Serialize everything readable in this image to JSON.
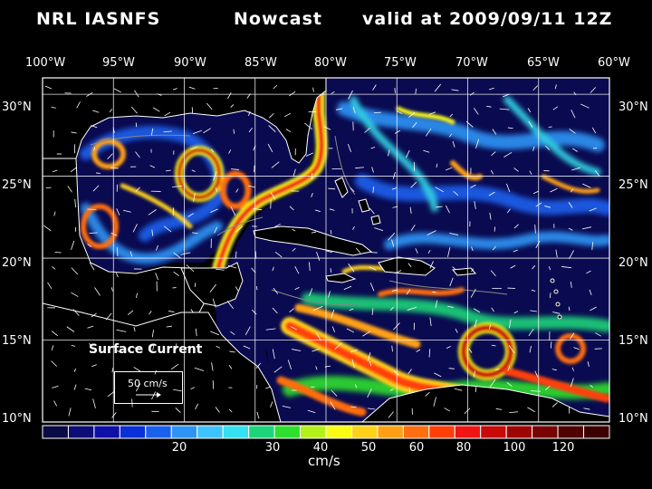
{
  "header": {
    "model": "NRL IASNFS",
    "product": "Nowcast",
    "valid": "valid at 2009/09/11 12Z"
  },
  "map": {
    "lon_labels": [
      "100°W",
      "95°W",
      "90°W",
      "85°W",
      "80°W",
      "75°W",
      "70°W",
      "65°W",
      "60°W"
    ],
    "lat_labels": [
      "30°N",
      "25°N",
      "20°N",
      "15°N",
      "10°N"
    ],
    "lon_range": [
      -100,
      -60
    ],
    "lat_range": [
      10,
      31
    ],
    "field": "surface current speed",
    "grid": true,
    "land_color": "#000000",
    "coast_color": "#ffffff"
  },
  "overlay": {
    "title": "Surface Current",
    "reference_vector": "50 cm/s"
  },
  "colorbar": {
    "unit": "cm/s",
    "tick_labels": [
      "20",
      "30",
      "40",
      "50",
      "60",
      "80",
      "100",
      "120"
    ],
    "colors": [
      "#0a0a46",
      "#0d0d78",
      "#1010a8",
      "#0b2fd8",
      "#1a60ee",
      "#2d94f6",
      "#3fc3ff",
      "#35e0f0",
      "#1ed47a",
      "#2ee02e",
      "#b4f01a",
      "#fafa14",
      "#ffd21a",
      "#ffa014",
      "#ff6e0f",
      "#ff3f0a",
      "#f01414",
      "#c80a0a",
      "#a00505",
      "#780303",
      "#500101",
      "#3c0000"
    ]
  }
}
